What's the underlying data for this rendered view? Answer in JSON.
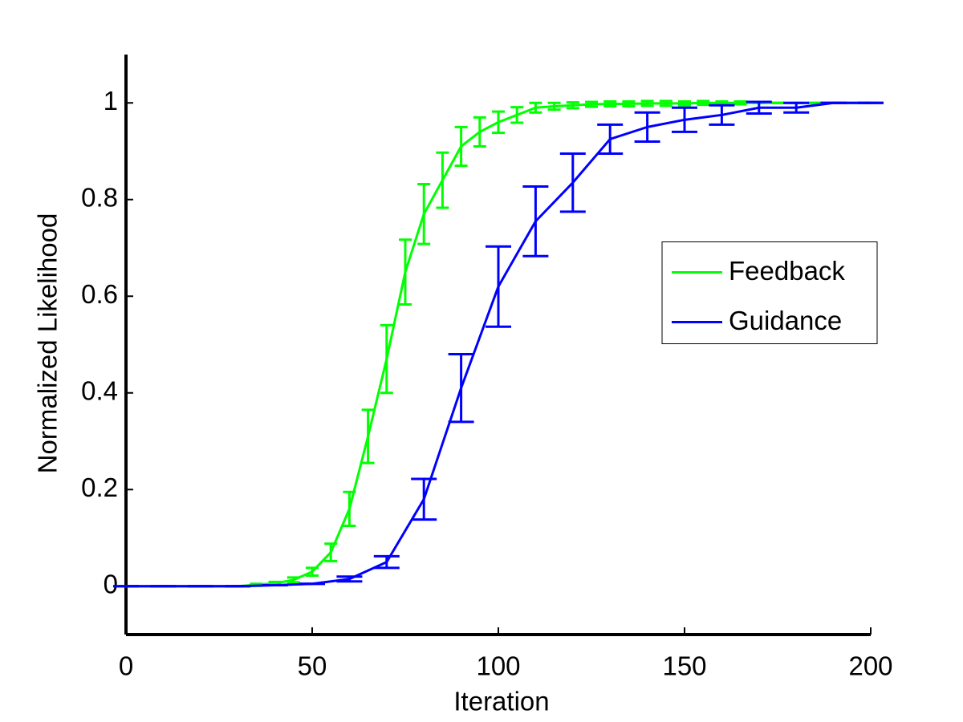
{
  "chart_data": {
    "type": "line",
    "xlabel": "Iteration",
    "ylabel": "Normalized Likelihood",
    "xlim": [
      0,
      200
    ],
    "ylim": [
      -0.1,
      1.1
    ],
    "xticks": [
      0,
      50,
      100,
      150,
      200
    ],
    "yticks": [
      0,
      0.2,
      0.4,
      0.6,
      0.8,
      1
    ],
    "legend_loc": "east",
    "series": [
      {
        "name": "Feedback",
        "color": "#00ff00",
        "x": [
          0,
          5,
          10,
          15,
          20,
          25,
          30,
          35,
          40,
          45,
          50,
          55,
          60,
          65,
          70,
          75,
          80,
          85,
          90,
          95,
          100,
          105,
          110,
          115,
          120,
          125,
          130,
          135,
          140,
          145,
          150,
          155,
          160,
          165,
          170,
          175,
          180,
          185,
          190,
          195,
          200
        ],
        "values": [
          0,
          0,
          0,
          0,
          0,
          0,
          0,
          0.003,
          0.006,
          0.013,
          0.03,
          0.07,
          0.16,
          0.31,
          0.47,
          0.65,
          0.77,
          0.84,
          0.91,
          0.94,
          0.96,
          0.975,
          0.99,
          0.993,
          0.995,
          0.997,
          0.998,
          0.998,
          0.999,
          0.999,
          0.999,
          1,
          1,
          1,
          1,
          1,
          1,
          1,
          1,
          1,
          1
        ],
        "errors": [
          0,
          0,
          0,
          0,
          0,
          0,
          0,
          0.002,
          0.003,
          0.005,
          0.008,
          0.018,
          0.035,
          0.055,
          0.07,
          0.067,
          0.062,
          0.057,
          0.04,
          0.03,
          0.022,
          0.016,
          0.01,
          0.007,
          0.006,
          0.005,
          0.005,
          0.005,
          0.005,
          0.005,
          0.004,
          0.004,
          0.003,
          0.003,
          0,
          0,
          0,
          0,
          0,
          0,
          0
        ]
      },
      {
        "name": "Guidance",
        "color": "#0000ff",
        "x": [
          0,
          10,
          20,
          30,
          40,
          50,
          60,
          70,
          80,
          90,
          100,
          110,
          120,
          130,
          140,
          150,
          160,
          170,
          180,
          190,
          200
        ],
        "values": [
          0,
          0,
          0,
          0,
          0.002,
          0.005,
          0.015,
          0.05,
          0.18,
          0.41,
          0.62,
          0.755,
          0.835,
          0.925,
          0.95,
          0.965,
          0.975,
          0.99,
          0.99,
          1,
          1
        ],
        "errors": [
          0,
          0,
          0,
          0,
          0,
          0,
          0.005,
          0.012,
          0.042,
          0.07,
          0.083,
          0.072,
          0.06,
          0.03,
          0.03,
          0.025,
          0.02,
          0.012,
          0.01,
          0,
          0
        ]
      }
    ]
  }
}
